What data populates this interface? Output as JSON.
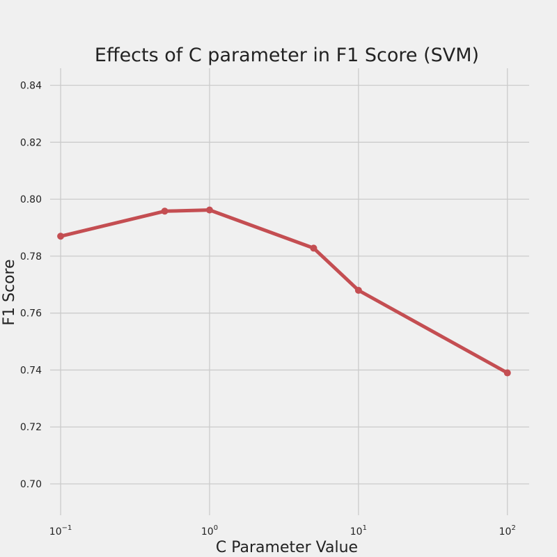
{
  "chart_data": {
    "type": "line",
    "title": "Effects of C parameter in F1 Score (SVM)",
    "xlabel": "C Parameter Value",
    "ylabel": "F1 Score",
    "xscale": "log",
    "xlim": [
      0.085,
      140
    ],
    "ylim": [
      0.689,
      0.846
    ],
    "grid": true,
    "x_ticks": [
      {
        "value": 0.1,
        "base": "10",
        "exp": "−1"
      },
      {
        "value": 1,
        "base": "10",
        "exp": "0"
      },
      {
        "value": 10,
        "base": "10",
        "exp": "1"
      },
      {
        "value": 100,
        "base": "10",
        "exp": "2"
      }
    ],
    "y_ticks": [
      {
        "value": 0.7,
        "label": "0.70"
      },
      {
        "value": 0.72,
        "label": "0.72"
      },
      {
        "value": 0.74,
        "label": "0.74"
      },
      {
        "value": 0.76,
        "label": "0.76"
      },
      {
        "value": 0.78,
        "label": "0.78"
      },
      {
        "value": 0.8,
        "label": "0.80"
      },
      {
        "value": 0.82,
        "label": "0.82"
      },
      {
        "value": 0.84,
        "label": "0.84"
      }
    ],
    "series": [
      {
        "color": "#c44e52",
        "x": [
          0.1,
          0.5,
          1,
          5,
          10,
          100
        ],
        "y": [
          0.787,
          0.7958,
          0.7962,
          0.7828,
          0.768,
          0.739
        ]
      }
    ]
  }
}
